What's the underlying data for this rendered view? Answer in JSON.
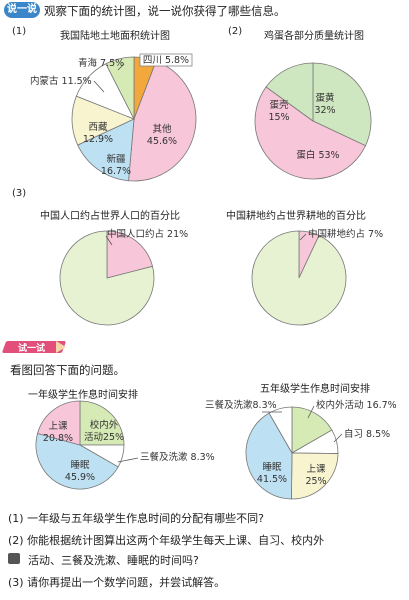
{
  "section1": {
    "badge": "说一说",
    "instruction": "观察下面的统计图，说一说你获得了哪些信息。"
  },
  "chart1": {
    "number": "(1)",
    "title": "我国陆地土地面积统计图",
    "chart_data": {
      "type": "pie",
      "title": "我国陆地土地面积统计图",
      "slices": [
        {
          "label": "四川",
          "percent": "5.8%",
          "value": 5.8,
          "color": "#f2a83c"
        },
        {
          "label": "其他",
          "percent": "45.6%",
          "value": 45.6,
          "color": "#f7c6d8"
        },
        {
          "label": "新疆",
          "percent": "16.7%",
          "value": 16.7,
          "color": "#bde0f2"
        },
        {
          "label": "西藏",
          "percent": "12.9%",
          "value": 12.9,
          "color": "#f8f4d0"
        },
        {
          "label": "内蒙古",
          "percent": "11.5%",
          "value": 11.5,
          "color": "#ffffff"
        },
        {
          "label": "青海",
          "percent": "7.5%",
          "value": 7.5,
          "color": "#d6eab6"
        }
      ]
    }
  },
  "chart2": {
    "number": "(2)",
    "title": "鸡蛋各部分质量统计图",
    "chart_data": {
      "type": "pie",
      "title": "鸡蛋各部分质量统计图",
      "slices": [
        {
          "label": "蛋黄",
          "percent": "32%",
          "value": 32,
          "color": "#cfe7c0"
        },
        {
          "label": "蛋白",
          "percent": "53%",
          "value": 53,
          "color": "#f7c6d8"
        },
        {
          "label": "蛋壳",
          "percent": "15%",
          "value": 15,
          "color": "#cfe7c0"
        }
      ]
    }
  },
  "chart3": {
    "number": "(3)",
    "title": "中国人口约占世界人口的百分比",
    "chart_data": {
      "type": "pie",
      "slices": [
        {
          "label": "中国人口约占",
          "percent": "21%",
          "value": 21,
          "color": "#f7c6d8"
        },
        {
          "label": "",
          "percent": "",
          "value": 79,
          "color": "#e6f2d2"
        }
      ]
    }
  },
  "chart4": {
    "title": "中国耕地约占世界耕地的百分比",
    "chart_data": {
      "type": "pie",
      "slices": [
        {
          "label": "中国耕地约占",
          "percent": "7%",
          "value": 7,
          "color": "#f7c6d8"
        },
        {
          "label": "",
          "percent": "",
          "value": 93,
          "color": "#e6f2d2"
        }
      ]
    }
  },
  "section2": {
    "badge": "试一试",
    "instruction": "看图回答下面的问题。"
  },
  "chart5": {
    "title": "一年级学生作息时间安排",
    "chart_data": {
      "type": "pie",
      "slices": [
        {
          "label": "校内外活动",
          "percent": "25%",
          "value": 25,
          "color": "#d6eab6"
        },
        {
          "label": "三餐及洗漱",
          "percent": "8.3%",
          "value": 8.3,
          "color": "#ffffff"
        },
        {
          "label": "睡眠",
          "percent": "45.9%",
          "value": 45.9,
          "color": "#bde0f2"
        },
        {
          "label": "上课",
          "percent": "20.8%",
          "value": 20.8,
          "color": "#f7c6d8"
        }
      ]
    }
  },
  "chart6": {
    "title": "五年级学生作息时间安排",
    "chart_data": {
      "type": "pie",
      "slices": [
        {
          "label": "校内外活动",
          "percent": "16.7%",
          "value": 16.7,
          "color": "#d6eab6"
        },
        {
          "label": "自习",
          "percent": "8.5%",
          "value": 8.5,
          "color": "#ffffff"
        },
        {
          "label": "上课",
          "percent": "25%",
          "value": 25,
          "color": "#f8f4d0"
        },
        {
          "label": "睡眠",
          "percent": "41.5%",
          "value": 41.5,
          "color": "#bde0f2"
        },
        {
          "label": "三餐及洗漱",
          "percent": "8.3%",
          "value": 8.3,
          "color": "#ffffff"
        }
      ]
    }
  },
  "questions": [
    "(1) 一年级与五年级学生作息时间的分配有哪些不同?",
    "(2) 你能根据统计图算出这两个年级学生每天上课、自习、校内外",
    "活动、三餐及洗漱、睡眠的时间吗?",
    "(3) 请你再提出一个数学问题，并尝试解答。"
  ]
}
